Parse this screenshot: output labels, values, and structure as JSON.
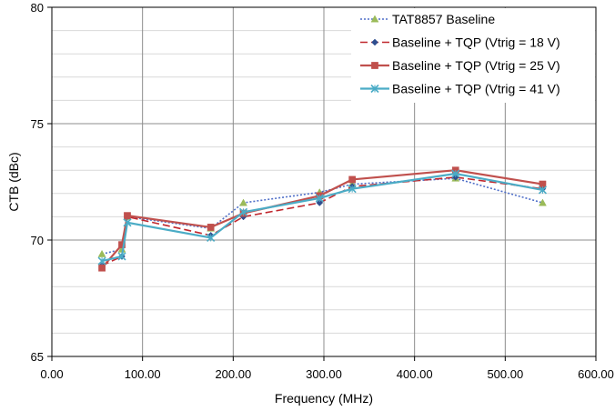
{
  "chart_data": {
    "type": "line",
    "title": "",
    "xlabel": "Frequency (MHz)",
    "ylabel": "CTB (dBc)",
    "xlim": [
      0,
      600
    ],
    "ylim": [
      65,
      80
    ],
    "x_ticks": [
      0,
      100,
      200,
      300,
      400,
      500,
      600
    ],
    "x_tick_labels": [
      "0.00",
      "100.00",
      "200.00",
      "300.00",
      "400.00",
      "500.00",
      "600.00"
    ],
    "y_ticks": [
      65,
      70,
      75,
      80
    ],
    "y_tick_labels": [
      "65",
      "70",
      "75",
      "80"
    ],
    "grid": {
      "major_x": true,
      "major_y": true,
      "minor_y_step": 1
    },
    "legend_position": "top-right",
    "series": [
      {
        "name": "TAT8857 Baseline",
        "color": "#4F6FC8",
        "line_style": "dotted",
        "marker": "triangle",
        "marker_color": "#9BBB59",
        "x": [
          55.25,
          77.25,
          83.25,
          175.25,
          211.25,
          295.25,
          331.25,
          445.25,
          541.25
        ],
        "y": [
          69.4,
          69.6,
          71.0,
          70.5,
          71.6,
          72.05,
          72.4,
          72.65,
          71.6
        ]
      },
      {
        "name": "Baseline + TQP (Vtrig = 18 V)",
        "color": "#C0272D",
        "line_style": "dashed",
        "marker": "diamond",
        "marker_color": "#2E4E8F",
        "x": [
          55.25,
          77.25,
          83.25,
          175.25,
          211.25,
          295.25,
          331.25,
          445.25,
          541.25
        ],
        "y": [
          68.9,
          69.3,
          71.0,
          70.2,
          71.0,
          71.6,
          72.3,
          72.7,
          72.2
        ]
      },
      {
        "name": "Baseline + TQP (Vtrig = 25 V)",
        "color": "#C0504D",
        "line_style": "solid",
        "marker": "square",
        "marker_color": "#C0504D",
        "x": [
          55.25,
          77.25,
          83.25,
          175.25,
          211.25,
          295.25,
          331.25,
          445.25,
          541.25
        ],
        "y": [
          68.8,
          69.8,
          71.05,
          70.55,
          71.15,
          71.9,
          72.6,
          73.0,
          72.4
        ]
      },
      {
        "name": "Baseline + TQP (Vtrig = 41 V)",
        "color": "#4BACC6",
        "line_style": "solid",
        "marker": "x",
        "marker_color": "#4BACC6",
        "x": [
          55.25,
          77.25,
          83.25,
          175.25,
          211.25,
          295.25,
          331.25,
          445.25,
          541.25
        ],
        "y": [
          69.1,
          69.3,
          70.75,
          70.1,
          71.2,
          71.8,
          72.2,
          72.85,
          72.15
        ]
      }
    ]
  }
}
